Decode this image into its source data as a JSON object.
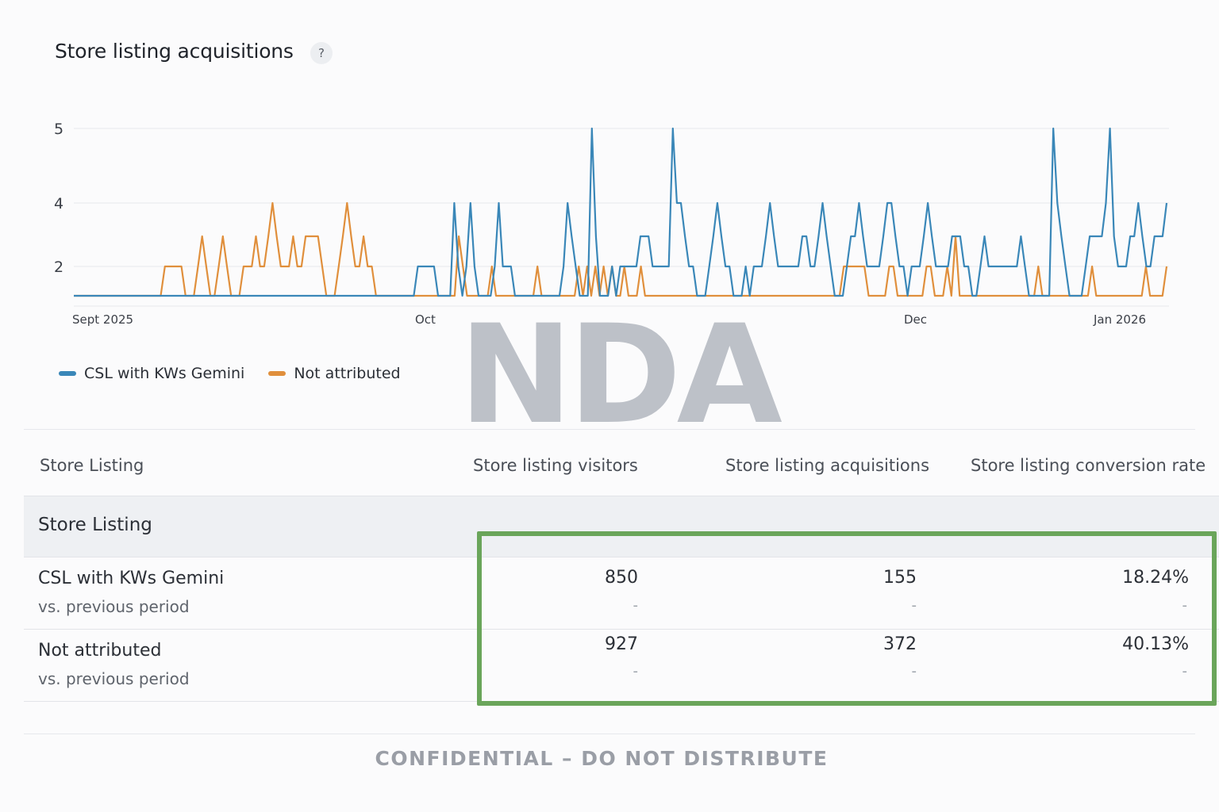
{
  "card": {
    "title": "Store listing acquisitions",
    "help_icon_text": "?"
  },
  "chart_data": {
    "type": "line",
    "title": "",
    "y_ticks": [
      "5",
      "4",
      "2"
    ],
    "x_ticks": [
      "Sept 2025",
      "Oct",
      "Dec",
      "Jan 2026"
    ],
    "ylim": [
      1,
      5
    ],
    "grid": true,
    "legend_position": "bottom-left",
    "series": [
      {
        "name": "CSL with KWs Gemini",
        "color": "#3a87b8",
        "values": [
          1,
          1,
          1,
          1,
          1,
          1,
          1,
          1,
          1,
          1,
          1,
          1,
          1,
          1,
          1,
          1,
          1,
          1,
          1,
          1,
          1,
          1,
          1,
          1,
          1,
          1,
          1,
          1,
          1,
          1,
          1,
          1,
          1,
          1,
          1,
          1,
          1,
          1,
          1,
          1,
          1,
          1,
          1,
          1,
          1,
          1,
          1,
          1,
          1,
          1,
          1,
          1,
          1,
          1,
          1,
          1,
          1,
          1,
          1,
          1,
          1,
          1,
          1,
          1,
          1,
          1,
          1,
          1,
          1,
          1,
          1,
          1,
          1,
          1,
          1,
          1,
          1,
          1,
          1,
          1,
          1,
          1,
          1,
          1,
          1,
          2,
          2,
          2,
          2,
          2,
          1,
          1,
          1,
          1,
          4,
          2,
          1,
          2,
          4,
          2,
          1,
          1,
          1,
          1,
          2,
          4,
          2,
          2,
          2,
          1,
          1,
          1,
          1,
          1,
          1,
          1,
          1,
          1,
          1,
          1,
          1,
          2,
          4,
          3,
          2,
          1,
          1,
          1,
          5,
          3,
          1,
          1,
          1,
          2,
          1,
          2,
          2,
          2,
          2,
          2,
          3,
          3,
          3,
          2,
          2,
          2,
          2,
          2,
          5,
          4,
          4,
          3,
          2,
          2,
          1,
          1,
          1,
          2,
          3,
          4,
          3,
          2,
          2,
          1,
          1,
          1,
          2,
          1,
          2,
          2,
          2,
          3,
          4,
          3,
          2,
          2,
          2,
          2,
          2,
          2,
          3,
          3,
          2,
          2,
          3,
          4,
          3,
          2,
          1,
          1,
          1,
          2,
          3,
          3,
          4,
          3,
          2,
          2,
          2,
          2,
          3,
          4,
          4,
          3,
          2,
          2,
          1,
          2,
          2,
          2,
          3,
          4,
          3,
          2,
          2,
          2,
          2,
          3,
          3,
          3,
          2,
          2,
          1,
          1,
          2,
          3,
          2,
          2,
          2,
          2,
          2,
          2,
          2,
          2,
          3,
          2,
          1,
          1,
          1,
          1,
          1,
          1,
          5,
          4,
          3,
          2,
          1,
          1,
          1,
          1,
          2,
          3,
          3,
          3,
          3,
          4,
          5,
          3,
          2,
          2,
          2,
          3,
          3,
          4,
          3,
          2,
          2,
          3,
          3,
          3,
          4
        ]
      },
      {
        "name": "Not attributed",
        "color": "#e08f3c",
        "values": [
          1,
          1,
          1,
          1,
          1,
          1,
          1,
          1,
          1,
          1,
          1,
          1,
          1,
          1,
          1,
          1,
          1,
          1,
          1,
          1,
          1,
          1,
          2,
          2,
          2,
          2,
          2,
          1,
          1,
          1,
          2,
          3,
          2,
          1,
          1,
          2,
          3,
          2,
          1,
          1,
          1,
          2,
          2,
          2,
          3,
          2,
          2,
          3,
          4,
          3,
          2,
          2,
          2,
          3,
          2,
          2,
          3,
          3,
          3,
          3,
          2,
          1,
          1,
          1,
          2,
          3,
          4,
          3,
          2,
          2,
          3,
          2,
          2,
          1,
          1,
          1,
          1,
          1,
          1,
          1,
          1,
          1,
          1,
          1,
          1,
          1,
          1,
          1,
          1,
          1,
          1,
          1,
          1,
          3,
          2,
          1,
          1,
          1,
          1,
          1,
          1,
          2,
          1,
          1,
          1,
          1,
          1,
          1,
          1,
          1,
          1,
          1,
          2,
          1,
          1,
          1,
          1,
          1,
          1,
          1,
          1,
          1,
          2,
          1,
          2,
          1,
          2,
          1,
          2,
          1,
          2,
          1,
          1,
          2,
          1,
          1,
          1,
          2,
          1,
          1,
          1,
          1,
          1,
          1,
          1,
          1,
          1,
          1,
          1,
          1,
          1,
          1,
          1,
          1,
          1,
          1,
          1,
          1,
          1,
          1,
          1,
          1,
          1,
          1,
          1,
          1,
          1,
          1,
          1,
          1,
          1,
          1,
          1,
          1,
          1,
          1,
          1,
          1,
          1,
          1,
          1,
          1,
          1,
          1,
          1,
          1,
          2,
          2,
          2,
          2,
          2,
          2,
          1,
          1,
          1,
          1,
          1,
          2,
          2,
          1,
          1,
          1,
          1,
          1,
          1,
          1,
          2,
          2,
          1,
          1,
          1,
          2,
          1,
          3,
          1,
          1,
          1,
          1,
          1,
          1,
          1,
          1,
          1,
          1,
          1,
          1,
          1,
          1,
          1,
          1,
          1,
          1,
          1,
          2,
          1,
          1,
          1,
          1,
          1,
          1,
          1,
          1,
          1,
          1,
          1,
          1,
          2,
          1,
          1,
          1,
          1,
          1,
          1,
          1,
          1,
          1,
          1,
          1,
          1,
          2,
          1,
          1,
          1,
          1,
          2
        ]
      }
    ]
  },
  "watermark": {
    "text": "NDA"
  },
  "table": {
    "headers": {
      "name": "Store Listing",
      "visitors": "Store listing visitors",
      "acquisitions": "Store listing acquisitions",
      "conversion": "Store listing conversion rate"
    },
    "group_label": "Store Listing",
    "rows": [
      {
        "name": "CSL with KWs Gemini",
        "sub": "vs. previous period",
        "visitors": "850",
        "acquisitions": "155",
        "conversion": "18.24%",
        "visitors_cmp": "-",
        "acquisitions_cmp": "-",
        "conversion_cmp": "-"
      },
      {
        "name": "Not attributed",
        "sub": "vs. previous period",
        "visitors": "927",
        "acquisitions": "372",
        "conversion": "40.13%",
        "visitors_cmp": "-",
        "acquisitions_cmp": "-",
        "conversion_cmp": "-"
      }
    ],
    "highlight_color": "#6aa55a"
  },
  "footer": {
    "text": "CONFIDENTIAL – DO NOT DISTRIBUTE"
  }
}
